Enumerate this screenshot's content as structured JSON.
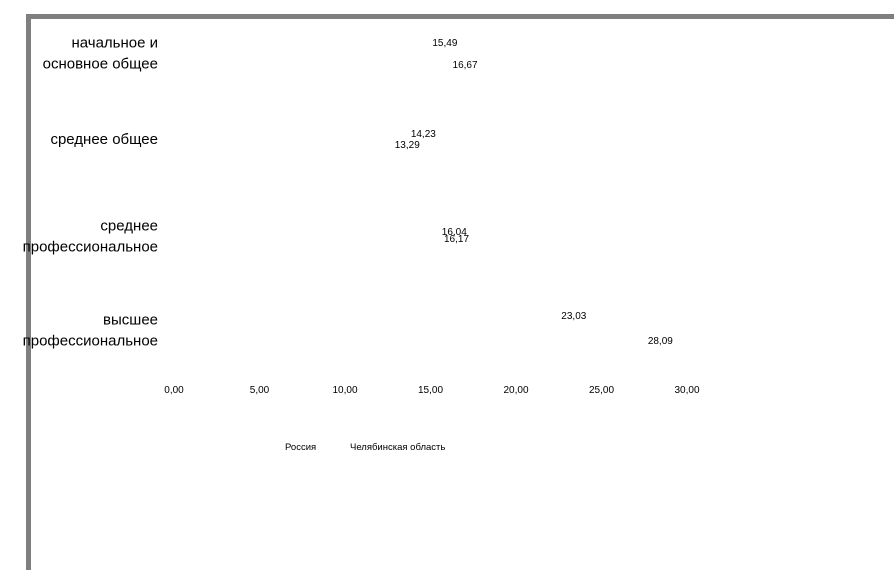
{
  "chart_data": {
    "type": "bar",
    "orientation": "horizontal",
    "categories": [
      [
        "начальное и",
        "основное общее"
      ],
      [
        "среднее общее"
      ],
      [
        "среднее",
        "профессиональное"
      ],
      [
        "высшее",
        "профессиональное"
      ]
    ],
    "series": [
      {
        "name": "Россия",
        "values": [
          15.49,
          14.23,
          16.04,
          23.03
        ],
        "labels": [
          "15,49",
          "14,23",
          "16,04",
          "23,03"
        ],
        "color": "#ffffff"
      },
      {
        "name": "Челябинская область",
        "values": [
          16.67,
          13.29,
          16.17,
          28.09
        ],
        "labels": [
          "16,67",
          "13,29",
          "16,17",
          "28,09"
        ],
        "color": "#ffffff"
      }
    ],
    "x_ticks": [
      "0,00",
      "5,00",
      "10,00",
      "15,00",
      "20,00",
      "25,00",
      "30,00"
    ],
    "xlim": [
      0,
      30
    ],
    "grid": false,
    "legend_position": "bottom"
  }
}
